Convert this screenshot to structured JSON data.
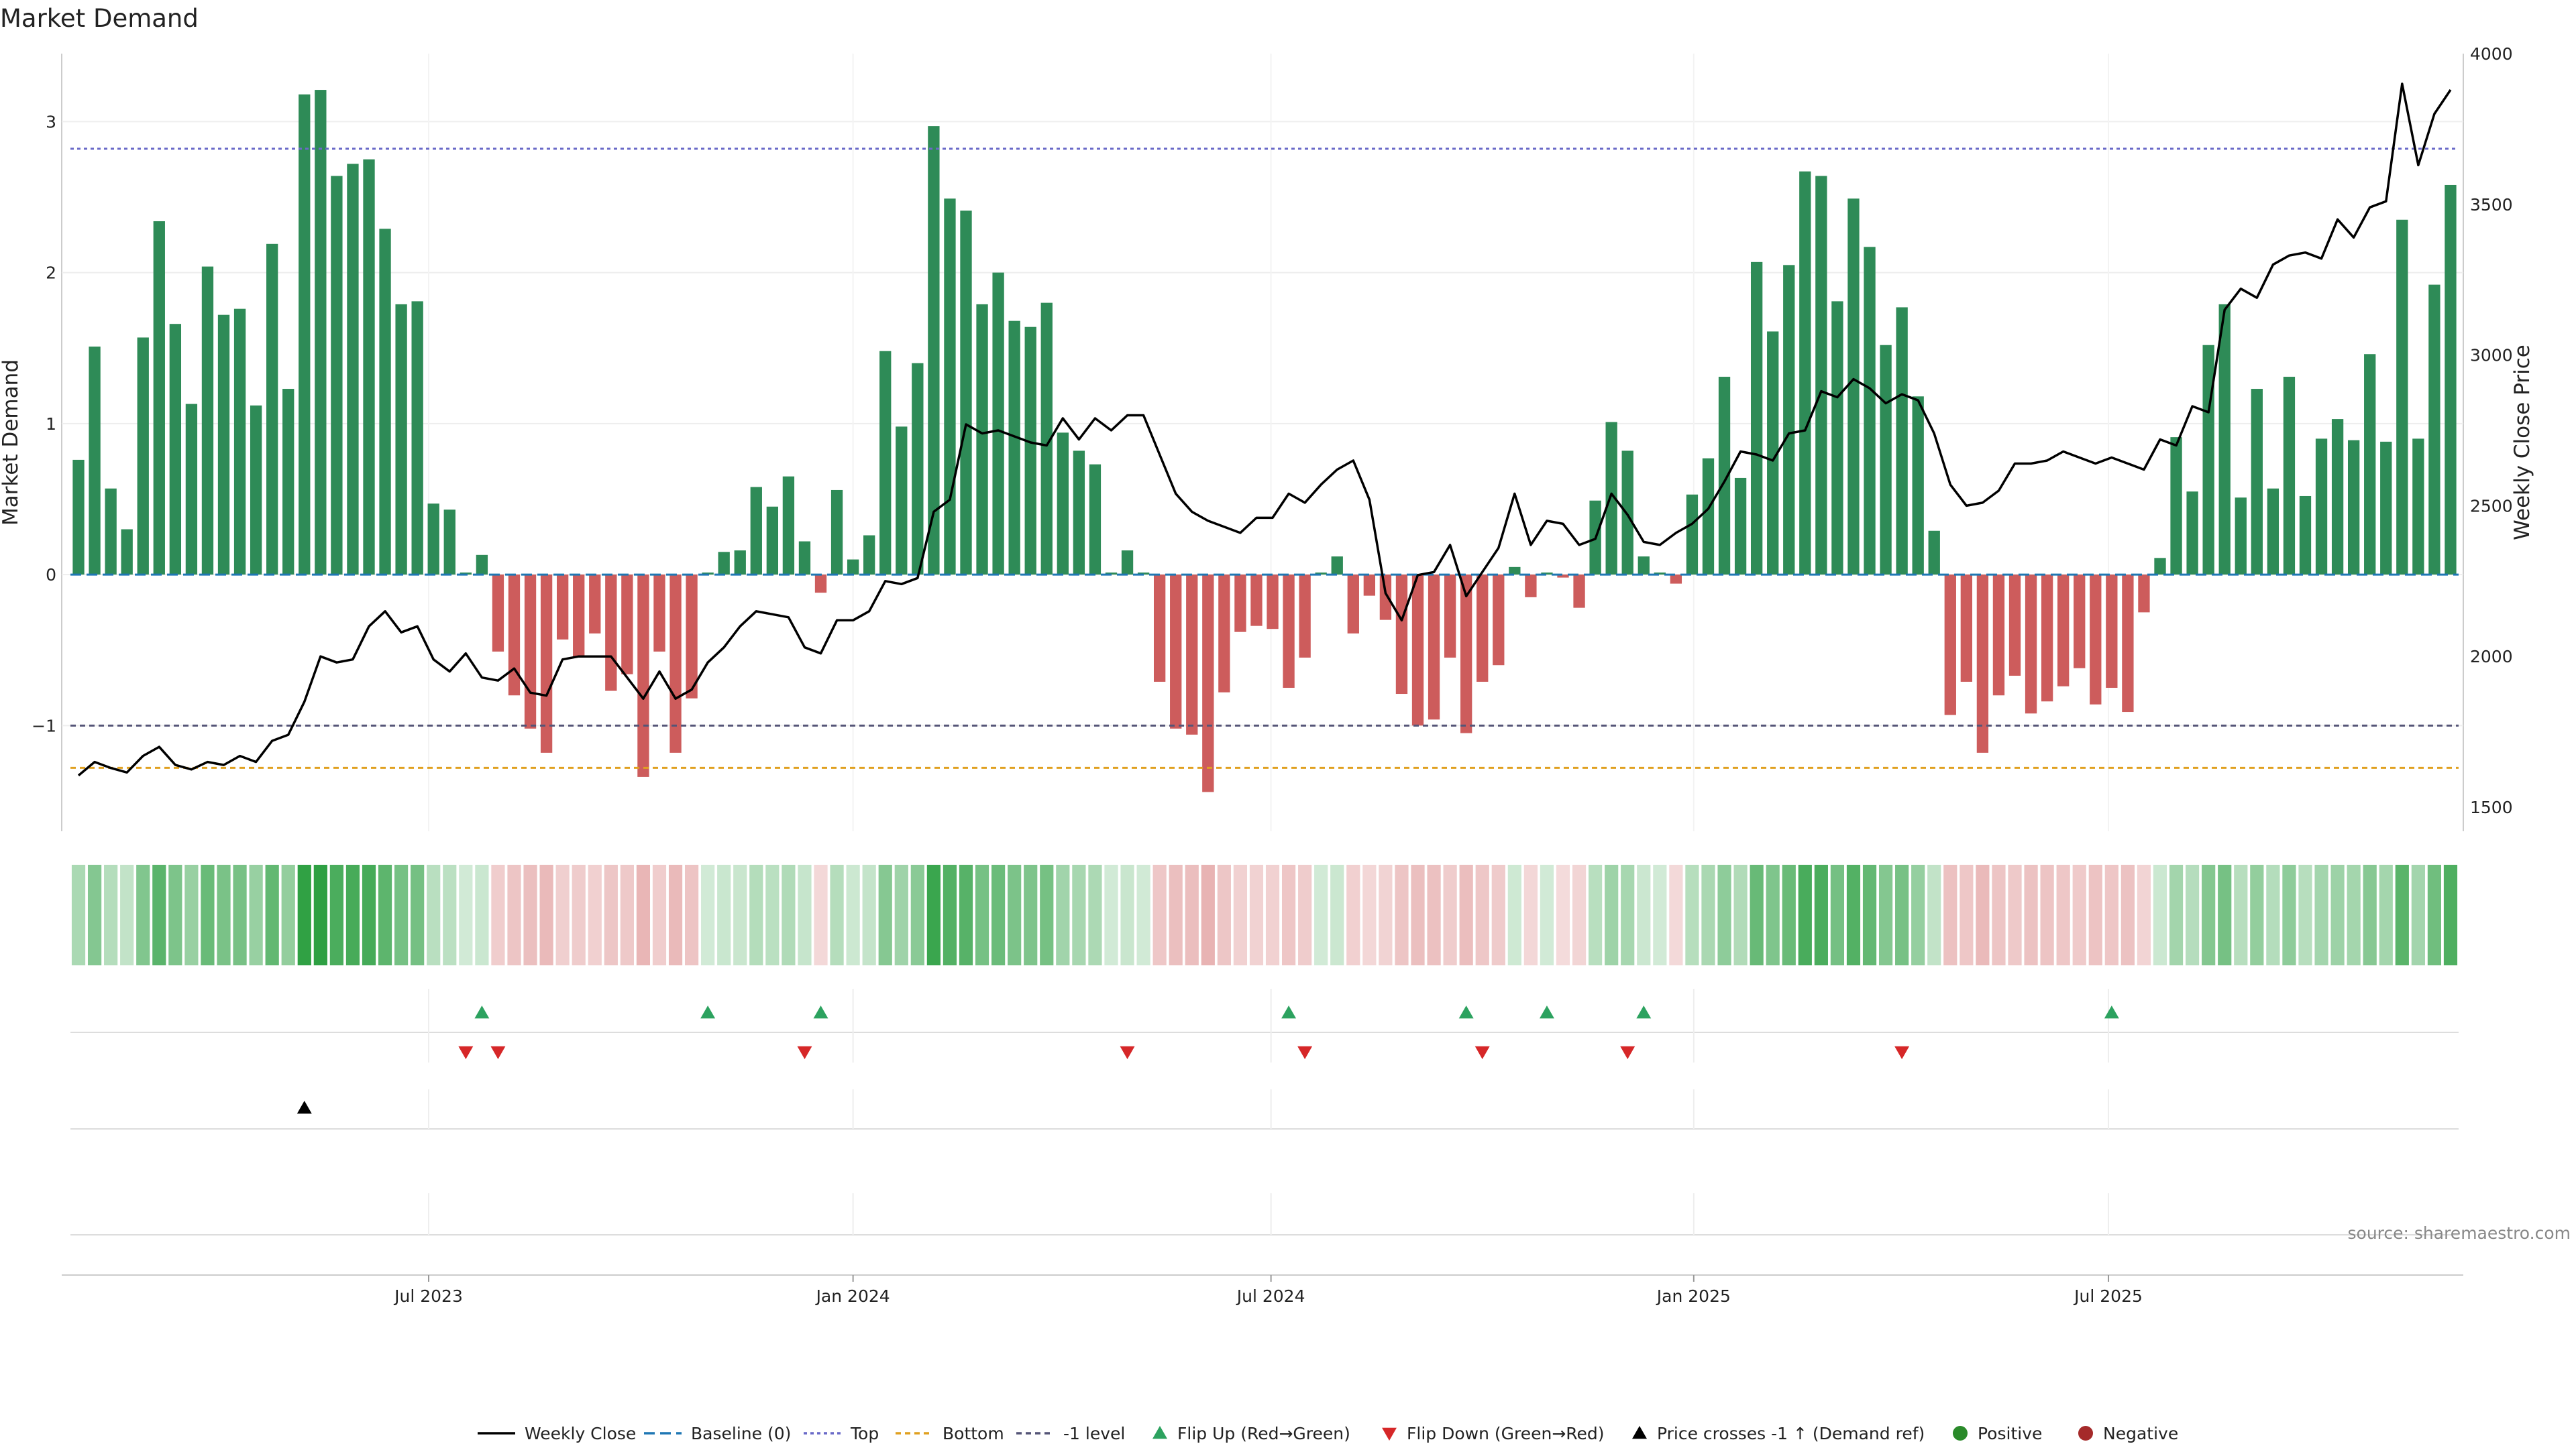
{
  "chart_data": {
    "type": "bar",
    "title": "Market Demand",
    "ylabel": "Market Demand",
    "y2label": "Weekly Close Price",
    "ylim": [
      -1.7,
      3.45
    ],
    "y2lim": [
      1420,
      4000
    ],
    "yticks": [
      -1,
      0,
      1,
      2,
      3
    ],
    "y2ticks": [
      1500,
      2000,
      2500,
      3000,
      3500,
      4000
    ],
    "levels": {
      "top": 2.82,
      "bottom": -1.28,
      "minus_one": -1.0,
      "baseline": 0
    },
    "x_start": "2023-01-01",
    "x_end": "2025-11-09",
    "x_domain": [
      0,
      148
    ],
    "xtick_labels": [
      "Jul 2023",
      "Jan 2024",
      "Jul 2024",
      "Jan 2025",
      "Jul 2025"
    ],
    "xtick_positions": [
      22.2,
      48.5,
      74.4,
      100.6,
      126.3
    ],
    "demand": [
      0.76,
      1.51,
      0.57,
      0.3,
      1.57,
      2.34,
      1.66,
      1.13,
      2.04,
      1.72,
      1.76,
      1.12,
      2.19,
      1.23,
      3.18,
      3.21,
      2.64,
      2.72,
      2.75,
      2.29,
      1.79,
      1.81,
      0.47,
      0.43,
      0.0,
      0.13,
      -0.51,
      -0.8,
      -1.02,
      -1.18,
      -0.43,
      -0.55,
      -0.39,
      -0.77,
      -0.66,
      -1.34,
      -0.51,
      -1.18,
      -0.82,
      0.0,
      0.15,
      0.16,
      0.58,
      0.45,
      0.65,
      0.22,
      -0.12,
      0.56,
      0.1,
      0.26,
      1.48,
      0.98,
      1.4,
      2.97,
      2.49,
      2.41,
      1.79,
      2.0,
      1.68,
      1.64,
      1.8,
      0.94,
      0.82,
      0.73,
      0.0,
      0.16,
      0.0,
      -0.71,
      -1.02,
      -1.06,
      -1.44,
      -0.78,
      -0.38,
      -0.34,
      -0.36,
      -0.75,
      -0.55,
      0.0,
      0.12,
      -0.39,
      -0.14,
      -0.3,
      -0.79,
      -1.0,
      -0.96,
      -0.55,
      -1.05,
      -0.71,
      -0.6,
      0.05,
      -0.15,
      0.0,
      -0.02,
      -0.22,
      0.49,
      1.01,
      0.82,
      0.12,
      0.0,
      -0.06,
      0.53,
      0.77,
      1.31,
      0.64,
      2.07,
      1.61,
      2.05,
      2.67,
      2.64,
      1.81,
      2.49,
      2.17,
      1.52,
      1.77,
      1.18,
      0.29,
      -0.93,
      -0.71,
      -1.18,
      -0.8,
      -0.67,
      -0.92,
      -0.84,
      -0.74,
      -0.62,
      -0.86,
      -0.75,
      -0.91,
      -0.25,
      0.11,
      0.91,
      0.55,
      1.52,
      1.79,
      0.51,
      1.23,
      0.57,
      1.31,
      0.52,
      0.9,
      1.03,
      0.89,
      1.46,
      0.88,
      2.35,
      0.9,
      1.92,
      2.58
    ],
    "weekly_close": [
      1605,
      1650,
      1630,
      1615,
      1670,
      1700,
      1640,
      1625,
      1650,
      1640,
      1670,
      1650,
      1720,
      1740,
      1850,
      2000,
      1980,
      1990,
      2100,
      2150,
      2080,
      2100,
      1990,
      1950,
      2010,
      1930,
      1920,
      1960,
      1880,
      1870,
      1990,
      2000,
      2000,
      2000,
      1930,
      1860,
      1950,
      1860,
      1890,
      1980,
      2030,
      2100,
      2150,
      2140,
      2130,
      2030,
      2010,
      2120,
      2120,
      2150,
      2250,
      2240,
      2260,
      2480,
      2520,
      2770,
      2740,
      2750,
      2730,
      2710,
      2700,
      2790,
      2720,
      2790,
      2750,
      2800,
      2800,
      2670,
      2540,
      2480,
      2450,
      2430,
      2410,
      2460,
      2460,
      2540,
      2510,
      2570,
      2620,
      2650,
      2520,
      2210,
      2120,
      2270,
      2280,
      2370,
      2200,
      2280,
      2360,
      2540,
      2370,
      2450,
      2440,
      2370,
      2390,
      2540,
      2470,
      2380,
      2370,
      2410,
      2440,
      2490,
      2580,
      2680,
      2670,
      2650,
      2740,
      2750,
      2880,
      2860,
      2920,
      2890,
      2840,
      2870,
      2850,
      2740,
      2570,
      2500,
      2510,
      2550,
      2640,
      2640,
      2650,
      2680,
      2660,
      2640,
      2660,
      2640,
      2620,
      2720,
      2700,
      2830,
      2810,
      3150,
      3220,
      3190,
      3300,
      3330,
      3340,
      3320,
      3450,
      3390,
      3490,
      3510,
      3900,
      3630,
      3800,
      3880
    ],
    "flip_up_idx": [
      25,
      39,
      46,
      75,
      86,
      91,
      97,
      126
    ],
    "flip_down_idx": [
      24,
      26,
      45,
      65,
      76,
      87,
      96,
      113
    ],
    "cross_idx": [
      14
    ],
    "legend": [
      "Weekly Close",
      "Baseline (0)",
      "Top",
      "Bottom",
      "-1 level",
      "Flip Up (Red→Green)",
      "Flip Down (Green→Red)",
      "Price crosses -1 ↑ (Demand ref)",
      "Positive",
      "Negative"
    ],
    "source": "source: sharemaestro.com"
  },
  "colors": {
    "positive_bar": "#2e8b57",
    "negative_bar": "#cd5c5c",
    "line": "#000000",
    "baseline": "#1f77b4",
    "top": "#6a6ac8",
    "bottom": "#e0a020",
    "minus_one": "#555577",
    "flip_up": "#2ca25f",
    "flip_down": "#d62728",
    "positive_dot": "#2a8a2a",
    "negative_dot": "#a52a2a"
  }
}
